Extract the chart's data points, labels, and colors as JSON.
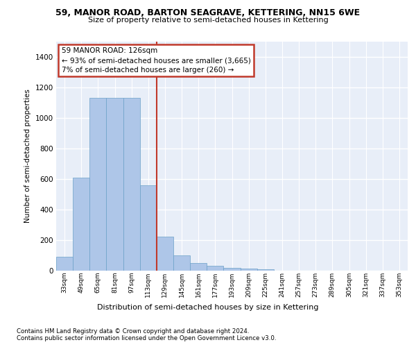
{
  "title1": "59, MANOR ROAD, BARTON SEAGRAVE, KETTERING, NN15 6WE",
  "title2": "Size of property relative to semi-detached houses in Kettering",
  "xlabel": "Distribution of semi-detached houses by size in Kettering",
  "ylabel": "Number of semi-detached properties",
  "footnote1": "Contains HM Land Registry data © Crown copyright and database right 2024.",
  "footnote2": "Contains public sector information licensed under the Open Government Licence v3.0.",
  "annotation_line1": "59 MANOR ROAD: 126sqm",
  "annotation_line2": "← 93% of semi-detached houses are smaller (3,665)",
  "annotation_line3": "7% of semi-detached houses are larger (260) →",
  "bar_color": "#aec6e8",
  "bar_edge_color": "#6aa0c8",
  "highlight_color": "#c0392b",
  "background_color": "#e8eef8",
  "grid_color": "#ffffff",
  "categories": [
    "33sqm",
    "49sqm",
    "65sqm",
    "81sqm",
    "97sqm",
    "113sqm",
    "129sqm",
    "145sqm",
    "161sqm",
    "177sqm",
    "193sqm",
    "209sqm",
    "225sqm",
    "241sqm",
    "257sqm",
    "273sqm",
    "289sqm",
    "305sqm",
    "321sqm",
    "337sqm",
    "353sqm"
  ],
  "values": [
    90,
    610,
    1130,
    1130,
    1130,
    560,
    225,
    100,
    50,
    30,
    20,
    15,
    10,
    0,
    0,
    0,
    0,
    0,
    0,
    0,
    0
  ],
  "ylim": [
    0,
    1500
  ],
  "yticks": [
    0,
    200,
    400,
    600,
    800,
    1000,
    1200,
    1400
  ],
  "vline_bin": 5.5
}
